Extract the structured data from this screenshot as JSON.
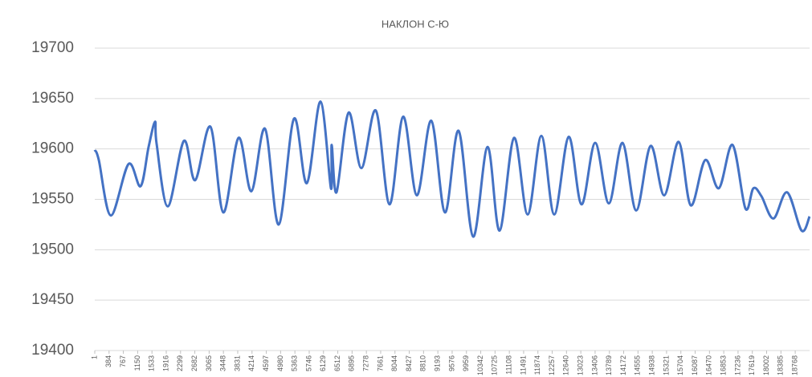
{
  "chart_data": {
    "type": "line",
    "title": "НАКЛОН С-Ю",
    "x": [
      1,
      109,
      431,
      905,
      1228,
      1443,
      1615,
      1658,
      1959,
      2389,
      2691,
      3100,
      3444,
      3853,
      4197,
      4563,
      4929,
      5338,
      5682,
      6048,
      6328,
      6349,
      6478,
      6801,
      7145,
      7533,
      7898,
      8264,
      8630,
      9018,
      9384,
      9749,
      10137,
      10524,
      10847,
      11234,
      11600,
      11966,
      12311,
      12698,
      13042,
      13408,
      13774,
      14140,
      14506,
      14893,
      15259,
      15646,
      15969,
      16357,
      16723,
      17089,
      17433,
      17648,
      17864,
      18185,
      18551,
      18938,
      19153
    ],
    "series": [
      {
        "name": "НАКЛОН С-Ю",
        "color": "#4472c4",
        "values": [
          19599,
          19589,
          19534,
          19585,
          19563,
          19602,
          19627,
          19605,
          19543,
          19608,
          19569,
          19622,
          19537,
          19611,
          19558,
          19620,
          19525,
          19630,
          19566,
          19647,
          19561,
          19604,
          19557,
          19636,
          19581,
          19638,
          19545,
          19632,
          19554,
          19628,
          19537,
          19618,
          19513,
          19602,
          19519,
          19611,
          19535,
          19613,
          19535,
          19612,
          19545,
          19606,
          19546,
          19606,
          19539,
          19603,
          19554,
          19607,
          19544,
          19589,
          19561,
          19604,
          19541,
          19561,
          19553,
          19531,
          19557,
          19519,
          19533
        ]
      }
    ],
    "xlim": [
      1,
      19153
    ],
    "xticks": [
      1,
      384,
      767,
      1150,
      1533,
      1916,
      2299,
      2682,
      3065,
      3448,
      3831,
      4214,
      4597,
      4980,
      5363,
      5746,
      6129,
      6512,
      6895,
      7278,
      7661,
      8044,
      8427,
      8810,
      9193,
      9576,
      9959,
      10342,
      10725,
      11108,
      11491,
      11874,
      12257,
      12640,
      13023,
      13406,
      13789,
      14172,
      14555,
      14938,
      15321,
      15704,
      16087,
      16470,
      16853,
      17236,
      17619,
      18002,
      18385,
      18768
    ],
    "ylim": [
      19400,
      19700
    ],
    "yticks": [
      19400,
      19450,
      19500,
      19550,
      19600,
      19650,
      19700
    ],
    "grid": true
  }
}
